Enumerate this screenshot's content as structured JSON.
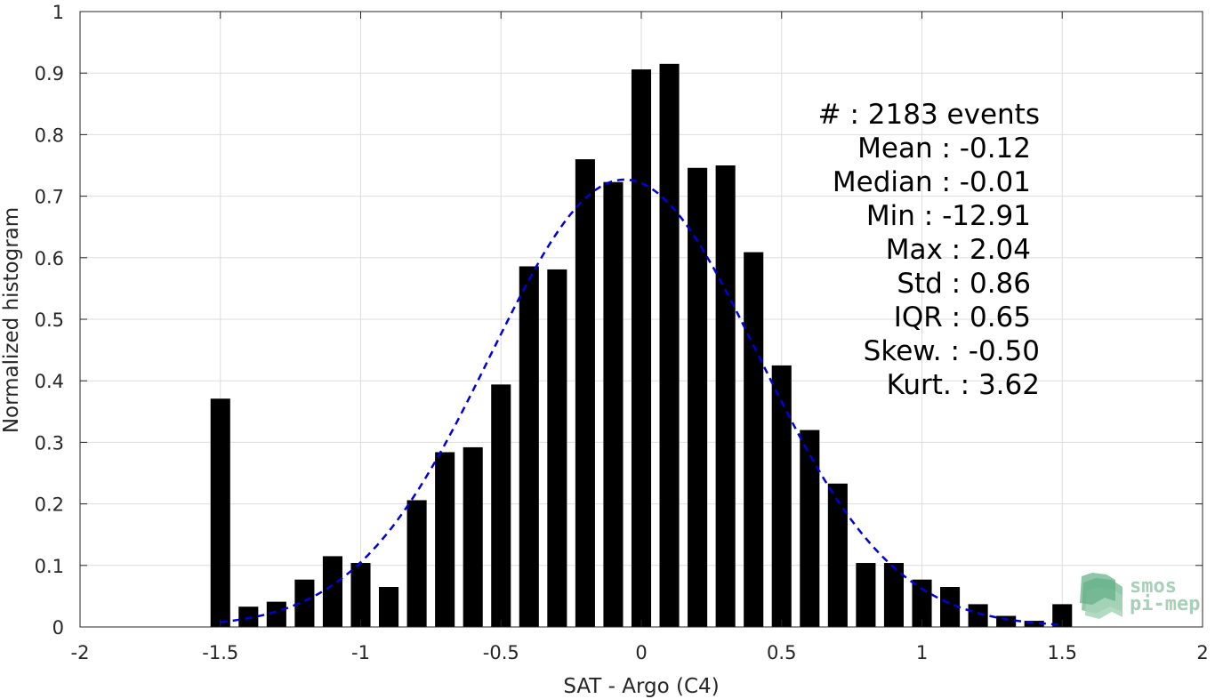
{
  "chart_data": {
    "type": "bar",
    "xlabel": "SAT - Argo (C4)",
    "ylabel": "Normalized histogram",
    "xlim": [
      -2,
      2
    ],
    "ylim": [
      0,
      1
    ],
    "xticks": [
      "-2",
      "-1.5",
      "-1",
      "-0.5",
      "0",
      "0.5",
      "1",
      "1.5",
      "2"
    ],
    "yticks": [
      "0",
      "0.1",
      "0.2",
      "0.3",
      "0.4",
      "0.5",
      "0.6",
      "0.7",
      "0.8",
      "0.9",
      "1"
    ],
    "grid": true,
    "bar_color": "#000000",
    "fit_color": "#0000dd",
    "bins": [
      -1.5,
      -1.4,
      -1.3,
      -1.2,
      -1.1,
      -1.0,
      -0.9,
      -0.8,
      -0.7,
      -0.6,
      -0.5,
      -0.4,
      -0.3,
      -0.2,
      -0.1,
      0.0,
      0.1,
      0.2,
      0.3,
      0.4,
      0.5,
      0.6,
      0.7,
      0.8,
      0.9,
      1.0,
      1.1,
      1.2,
      1.3,
      1.4,
      1.5
    ],
    "values": [
      0.371,
      0.033,
      0.041,
      0.077,
      0.115,
      0.104,
      0.065,
      0.206,
      0.284,
      0.292,
      0.394,
      0.586,
      0.581,
      0.76,
      0.723,
      0.906,
      0.915,
      0.746,
      0.75,
      0.609,
      0.425,
      0.32,
      0.233,
      0.104,
      0.104,
      0.077,
      0.065,
      0.037,
      0.018,
      0.01,
      0.037
    ],
    "fit": {
      "type": "gaussian",
      "style": "dashed",
      "mean": -0.06,
      "std": 0.478,
      "peak": 0.727,
      "x_range": [
        -1.5,
        1.5
      ]
    },
    "stats": [
      "#  : 2183 events",
      "Mean : -0.12",
      "Median : -0.01",
      "Min : -12.91",
      "Max : 2.04",
      "Std : 0.86",
      "IQR : 0.65",
      "Skew. : -0.50",
      "Kurt. : 3.62"
    ]
  },
  "logo": {
    "line1": "smos",
    "line2": "pi-mep"
  }
}
